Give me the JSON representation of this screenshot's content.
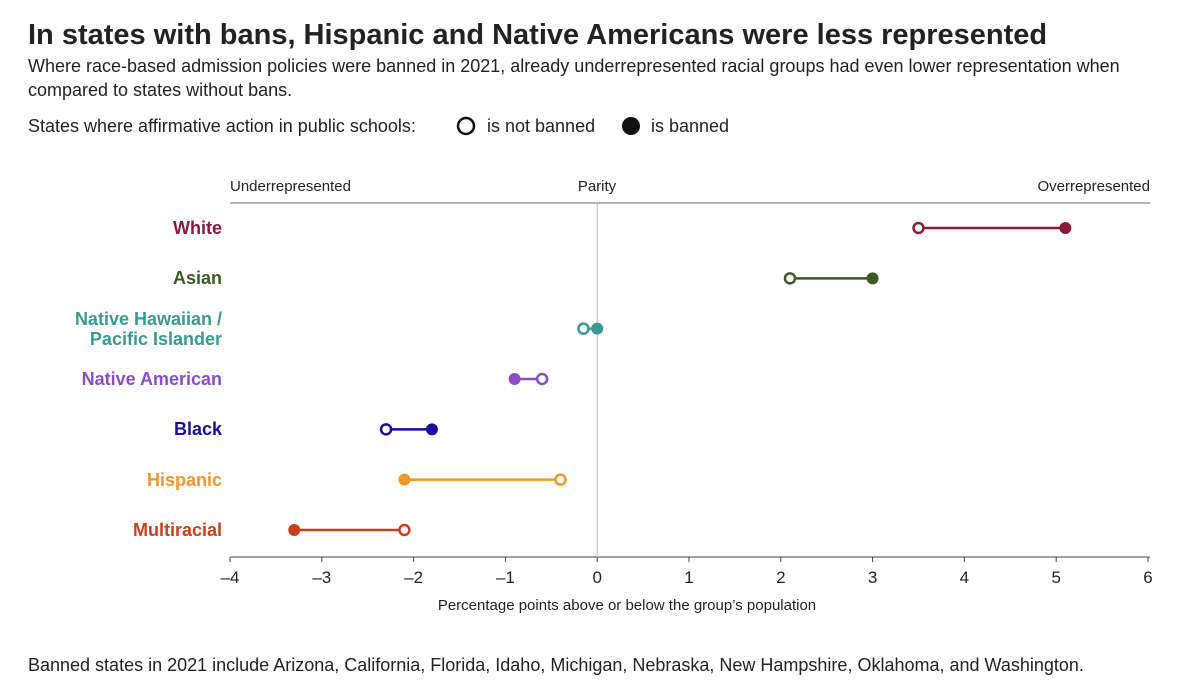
{
  "chart_data": {
    "type": "dumbbell",
    "title": "In states with bans, Hispanic and Native Americans were less represented",
    "subtitle": "Where race-based admission policies were banned in 2021, already underrepresented racial groups had even lower representation when compared to states without bans.",
    "legend_title": "States where affirmative action in public schools:",
    "categories": [
      "White",
      "Asian",
      "Native Hawaiian / Pacific Islander",
      "Native American",
      "Black",
      "Hispanic",
      "Multiracial"
    ],
    "category_colors": [
      "#8b1a3a",
      "#3a5a25",
      "#3a9a90",
      "#8a4fc8",
      "#1a0aa0",
      "#f0962a",
      "#c8401a"
    ],
    "series": [
      {
        "name": "is not banned",
        "marker": "open",
        "values": [
          3.5,
          2.1,
          -0.15,
          -0.6,
          -2.3,
          -0.4,
          -2.1
        ]
      },
      {
        "name": "is banned",
        "marker": "filled",
        "values": [
          5.1,
          3.0,
          0.0,
          -0.9,
          -1.8,
          -2.1,
          -3.3
        ]
      }
    ],
    "xlim": [
      -4,
      6
    ],
    "xticks": [
      {
        "value": -4,
        "label": "–4"
      },
      {
        "value": -3,
        "label": "–3"
      },
      {
        "value": -2,
        "label": "–2"
      },
      {
        "value": -1,
        "label": "–1"
      },
      0,
      1,
      2,
      3,
      4,
      5,
      6
    ],
    "x_label": "Percentage points above or below the group’s population",
    "annotations": [
      "Underrepresented",
      "Parity",
      "Overrepresented"
    ],
    "footnote": "Banned states in 2021 include Arizona, California, Florida, Idaho, Michigan, Nebraska, New Hampshire, Oklahoma, and Washington."
  }
}
